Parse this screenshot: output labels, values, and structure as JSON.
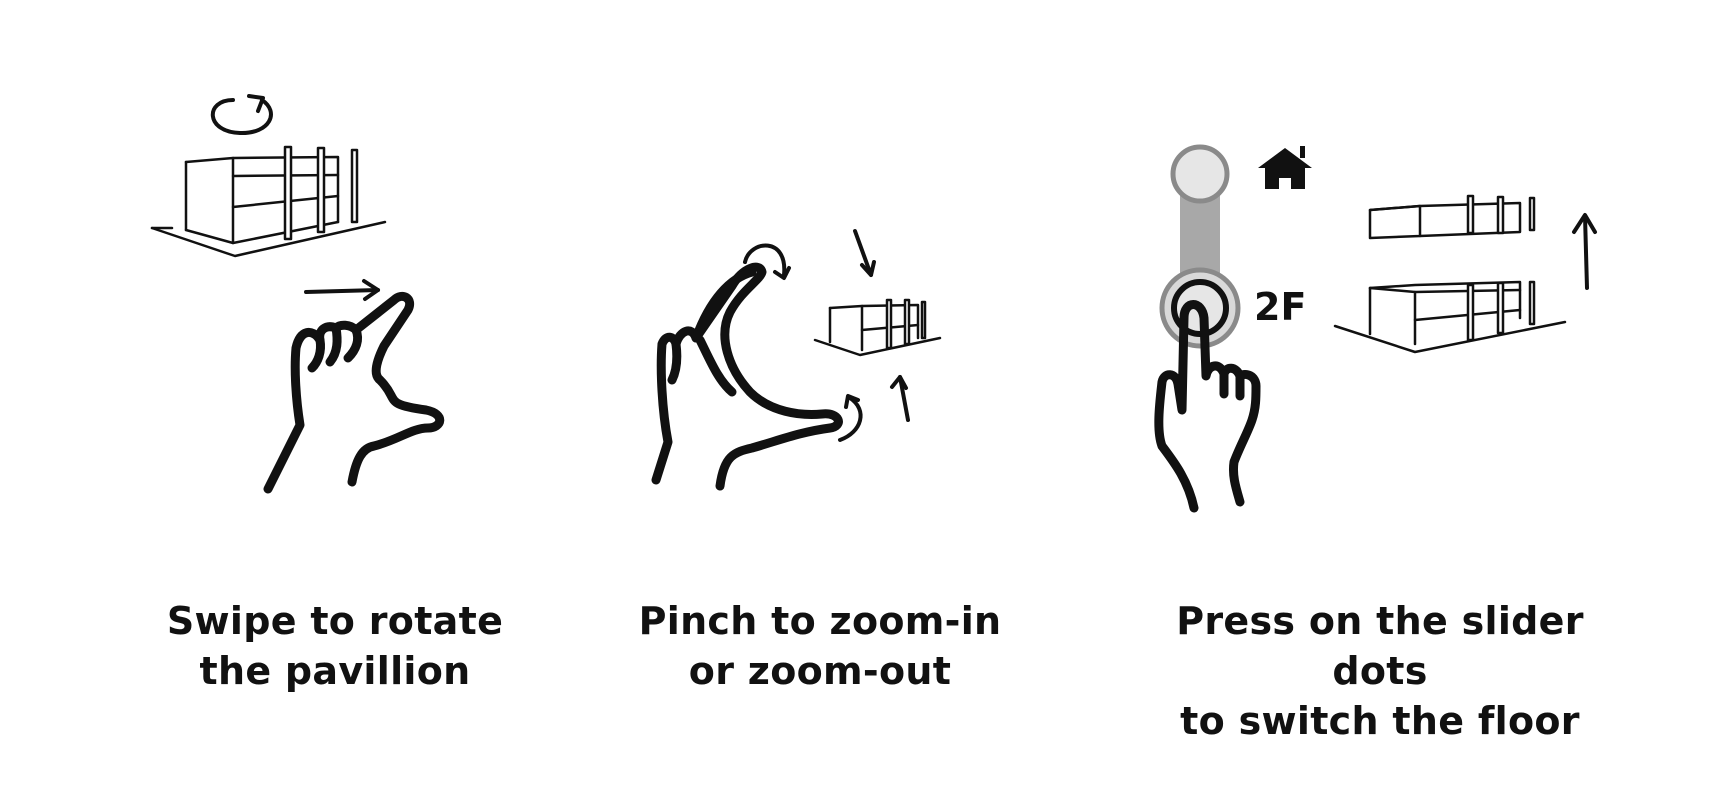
{
  "panels": [
    {
      "id": "swipe",
      "caption_line1": "Swipe to rotate",
      "caption_line2": "the pavillion",
      "icons": [
        "rotate-arrow-icon",
        "pavilion-icon",
        "swipe-arrow-icon",
        "swipe-hand-icon"
      ]
    },
    {
      "id": "pinch",
      "caption_line1": "Pinch to zoom-in",
      "caption_line2": "or zoom-out",
      "icons": [
        "pinch-hand-icon",
        "pavilion-small-icon",
        "zoom-arrow-icon"
      ]
    },
    {
      "id": "slider",
      "caption_line1": "Press on the slider dots",
      "caption_line2": "to switch the floor",
      "floor_label": "2F",
      "icons": [
        "home-icon",
        "slider-dot-icon",
        "tap-hand-icon",
        "pavilion-split-icon",
        "up-arrow-icon"
      ]
    }
  ],
  "colors": {
    "stroke": "#111111",
    "slider_track": "#a8a8a8",
    "slider_dot_fill": "#e6e6e6",
    "slider_dot_ring": "#8a8a8a",
    "background": "#ffffff"
  }
}
